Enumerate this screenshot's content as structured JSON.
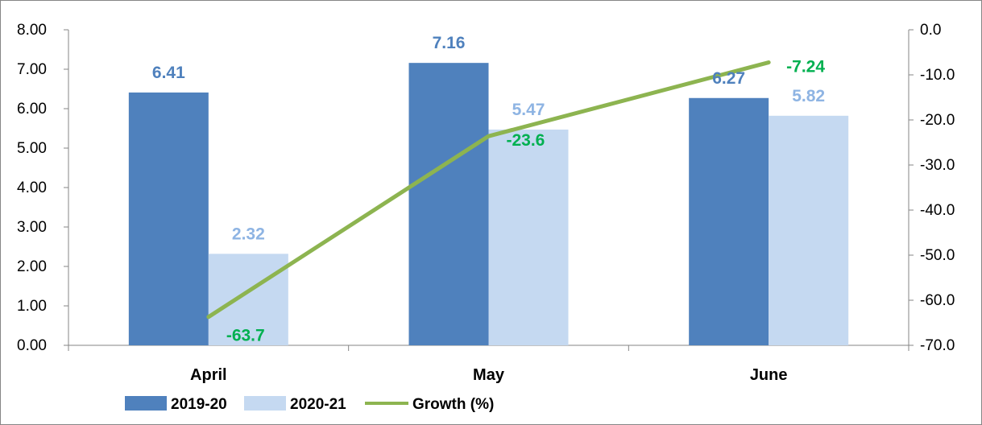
{
  "colors": {
    "series_2019": "#4f81bd",
    "series_2020": "#c5d9f1",
    "growth_line": "#8db450",
    "label_2019": "#4f81bd",
    "label_2020": "#8eb4e3",
    "label_growth": "#00b050",
    "axis": "#868686",
    "border": "#868686"
  },
  "chart_data": {
    "type": "bar",
    "categories": [
      "April",
      "May",
      "June"
    ],
    "series": [
      {
        "name": "2019-20",
        "values": [
          6.41,
          7.16,
          6.27
        ],
        "labels": [
          "6.41",
          "7.16",
          "6.27"
        ],
        "axis": "left"
      },
      {
        "name": "2020-21",
        "values": [
          2.32,
          5.47,
          5.82
        ],
        "labels": [
          "2.32",
          "5.47",
          "5.82"
        ],
        "axis": "left"
      }
    ],
    "line_series": {
      "name": "Growth (%)",
      "values": [
        -63.7,
        -23.6,
        -7.24
      ],
      "labels": [
        "-63.7",
        "-23.6",
        "-7.24"
      ],
      "axis": "right"
    },
    "left_axis": {
      "ylim": [
        0,
        8
      ],
      "ticks": [
        "0.00",
        "1.00",
        "2.00",
        "3.00",
        "4.00",
        "5.00",
        "6.00",
        "7.00",
        "8.00"
      ]
    },
    "right_axis": {
      "ylim": [
        -70,
        0
      ],
      "ticks": [
        "-70.0",
        "-60.0",
        "-50.0",
        "-40.0",
        "-30.0",
        "-20.0",
        "-10.0",
        "0.0"
      ]
    },
    "grid": false,
    "legend": "bottom-left"
  }
}
